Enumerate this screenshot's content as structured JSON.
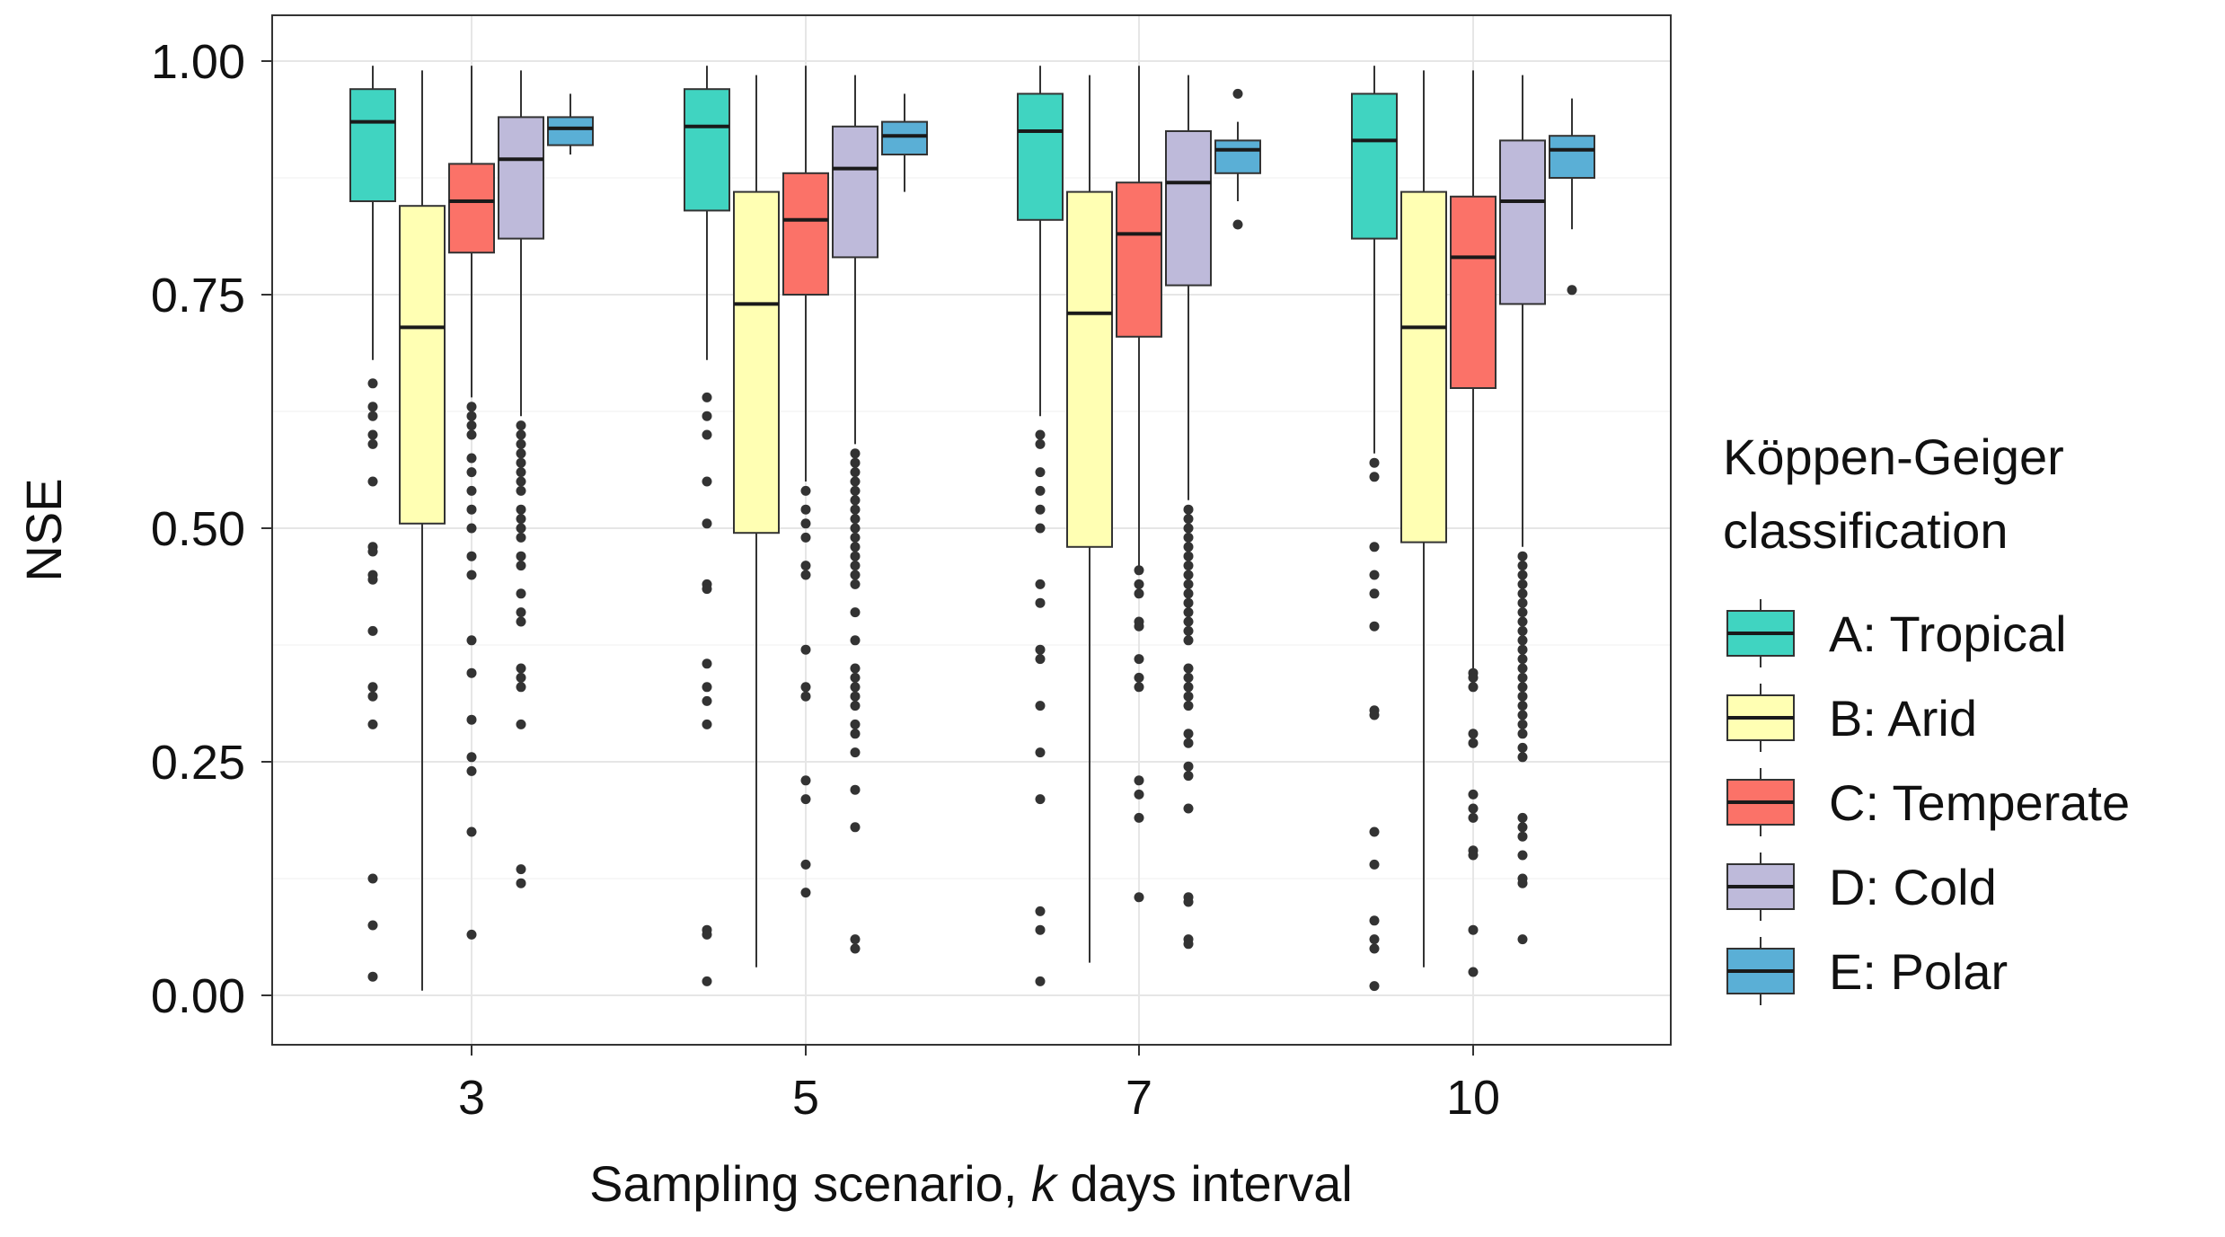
{
  "chart_data": {
    "type": "boxplot",
    "title": "",
    "xlabel_prefix": "Sampling scenario, ",
    "xlabel_italic": "k",
    "xlabel_suffix": " days interval",
    "ylabel": "NSE",
    "ylim": [
      -0.05,
      1.05
    ],
    "yticks": [
      0.0,
      0.25,
      0.5,
      0.75,
      1.0
    ],
    "ytick_labels": [
      "0.00",
      "0.25",
      "0.50",
      "0.75",
      "1.00"
    ],
    "categories": [
      "3",
      "5",
      "7",
      "10"
    ],
    "grid": true,
    "legend_title_line1": "Köppen-Geiger",
    "legend_title_line2": "classification",
    "legend_position": "right",
    "series": [
      {
        "name": "A: Tropical",
        "color": "#40D4C1",
        "boxes": [
          {
            "whisker_low": 0.68,
            "q1": 0.85,
            "median": 0.935,
            "q3": 0.97,
            "whisker_high": 0.995,
            "outliers": [
              0.655,
              0.63,
              0.62,
              0.6,
              0.59,
              0.55,
              0.48,
              0.475,
              0.45,
              0.445,
              0.39,
              0.33,
              0.32,
              0.29,
              0.125,
              0.075,
              0.02
            ]
          },
          {
            "whisker_low": 0.68,
            "q1": 0.84,
            "median": 0.93,
            "q3": 0.97,
            "whisker_high": 0.995,
            "outliers": [
              0.64,
              0.62,
              0.6,
              0.55,
              0.505,
              0.44,
              0.435,
              0.355,
              0.33,
              0.315,
              0.29,
              0.07,
              0.065,
              0.015
            ]
          },
          {
            "whisker_low": 0.62,
            "q1": 0.83,
            "median": 0.925,
            "q3": 0.965,
            "whisker_high": 0.995,
            "outliers": [
              0.6,
              0.59,
              0.56,
              0.54,
              0.52,
              0.5,
              0.44,
              0.42,
              0.37,
              0.36,
              0.31,
              0.26,
              0.21,
              0.09,
              0.07,
              0.015
            ]
          },
          {
            "whisker_low": 0.58,
            "q1": 0.81,
            "median": 0.915,
            "q3": 0.965,
            "whisker_high": 0.995,
            "outliers": [
              0.57,
              0.555,
              0.48,
              0.45,
              0.43,
              0.395,
              0.305,
              0.3,
              0.175,
              0.14,
              0.08,
              0.06,
              0.05,
              0.01
            ]
          }
        ]
      },
      {
        "name": "B: Arid",
        "color": "#FFFFB3",
        "boxes": [
          {
            "whisker_low": 0.005,
            "q1": 0.505,
            "median": 0.715,
            "q3": 0.845,
            "whisker_high": 0.99,
            "outliers": []
          },
          {
            "whisker_low": 0.03,
            "q1": 0.495,
            "median": 0.74,
            "q3": 0.86,
            "whisker_high": 0.985,
            "outliers": []
          },
          {
            "whisker_low": 0.035,
            "q1": 0.48,
            "median": 0.73,
            "q3": 0.86,
            "whisker_high": 0.985,
            "outliers": []
          },
          {
            "whisker_low": 0.03,
            "q1": 0.485,
            "median": 0.715,
            "q3": 0.86,
            "whisker_high": 0.99,
            "outliers": []
          }
        ]
      },
      {
        "name": "C: Temperate",
        "color": "#FB7268",
        "boxes": [
          {
            "whisker_low": 0.64,
            "q1": 0.795,
            "median": 0.85,
            "q3": 0.89,
            "whisker_high": 0.995,
            "outliers": [
              0.63,
              0.62,
              0.61,
              0.6,
              0.575,
              0.56,
              0.54,
              0.52,
              0.5,
              0.47,
              0.45,
              0.38,
              0.345,
              0.295,
              0.255,
              0.24,
              0.175,
              0.065
            ]
          },
          {
            "whisker_low": 0.55,
            "q1": 0.75,
            "median": 0.83,
            "q3": 0.88,
            "whisker_high": 0.995,
            "outliers": [
              0.54,
              0.52,
              0.505,
              0.49,
              0.46,
              0.45,
              0.37,
              0.33,
              0.32,
              0.23,
              0.21,
              0.14,
              0.11
            ]
          },
          {
            "whisker_low": 0.46,
            "q1": 0.705,
            "median": 0.815,
            "q3": 0.87,
            "whisker_high": 0.995,
            "outliers": [
              0.455,
              0.44,
              0.43,
              0.4,
              0.395,
              0.36,
              0.34,
              0.33,
              0.23,
              0.215,
              0.19,
              0.105
            ]
          },
          {
            "whisker_low": 0.35,
            "q1": 0.65,
            "median": 0.79,
            "q3": 0.855,
            "whisker_high": 0.99,
            "outliers": [
              0.345,
              0.34,
              0.33,
              0.28,
              0.27,
              0.215,
              0.2,
              0.19,
              0.155,
              0.15,
              0.07,
              0.025
            ]
          }
        ]
      },
      {
        "name": "D: Cold",
        "color": "#BEBADA",
        "boxes": [
          {
            "whisker_low": 0.62,
            "q1": 0.81,
            "median": 0.895,
            "q3": 0.94,
            "whisker_high": 0.99,
            "outliers": [
              0.61,
              0.6,
              0.59,
              0.58,
              0.57,
              0.56,
              0.55,
              0.54,
              0.52,
              0.51,
              0.5,
              0.49,
              0.47,
              0.46,
              0.43,
              0.41,
              0.4,
              0.35,
              0.34,
              0.33,
              0.29,
              0.135,
              0.12
            ]
          },
          {
            "whisker_low": 0.59,
            "q1": 0.79,
            "median": 0.885,
            "q3": 0.93,
            "whisker_high": 0.985,
            "outliers": [
              0.58,
              0.57,
              0.56,
              0.55,
              0.54,
              0.53,
              0.52,
              0.51,
              0.5,
              0.49,
              0.48,
              0.47,
              0.46,
              0.45,
              0.44,
              0.41,
              0.38,
              0.35,
              0.34,
              0.33,
              0.32,
              0.31,
              0.29,
              0.28,
              0.26,
              0.22,
              0.18,
              0.06,
              0.05
            ]
          },
          {
            "whisker_low": 0.53,
            "q1": 0.76,
            "median": 0.87,
            "q3": 0.925,
            "whisker_high": 0.985,
            "outliers": [
              0.52,
              0.51,
              0.5,
              0.49,
              0.48,
              0.47,
              0.46,
              0.45,
              0.44,
              0.43,
              0.42,
              0.41,
              0.4,
              0.39,
              0.38,
              0.35,
              0.34,
              0.33,
              0.32,
              0.31,
              0.28,
              0.27,
              0.245,
              0.235,
              0.2,
              0.105,
              0.1,
              0.06,
              0.055
            ]
          },
          {
            "whisker_low": 0.48,
            "q1": 0.74,
            "median": 0.85,
            "q3": 0.915,
            "whisker_high": 0.985,
            "outliers": [
              0.47,
              0.46,
              0.45,
              0.44,
              0.43,
              0.42,
              0.41,
              0.4,
              0.39,
              0.38,
              0.37,
              0.36,
              0.35,
              0.34,
              0.33,
              0.32,
              0.31,
              0.3,
              0.29,
              0.28,
              0.265,
              0.255,
              0.19,
              0.18,
              0.17,
              0.15,
              0.125,
              0.12,
              0.06
            ]
          }
        ]
      },
      {
        "name": "E: Polar",
        "color": "#5AAFD6",
        "boxes": [
          {
            "whisker_low": 0.9,
            "q1": 0.91,
            "median": 0.928,
            "q3": 0.94,
            "whisker_high": 0.965,
            "outliers": []
          },
          {
            "whisker_low": 0.86,
            "q1": 0.9,
            "median": 0.92,
            "q3": 0.935,
            "whisker_high": 0.965,
            "outliers": []
          },
          {
            "whisker_low": 0.85,
            "q1": 0.88,
            "median": 0.905,
            "q3": 0.915,
            "whisker_high": 0.935,
            "outliers": [
              0.965,
              0.825
            ]
          },
          {
            "whisker_low": 0.82,
            "q1": 0.875,
            "median": 0.905,
            "q3": 0.92,
            "whisker_high": 0.96,
            "outliers": [
              0.755
            ]
          }
        ]
      }
    ]
  }
}
